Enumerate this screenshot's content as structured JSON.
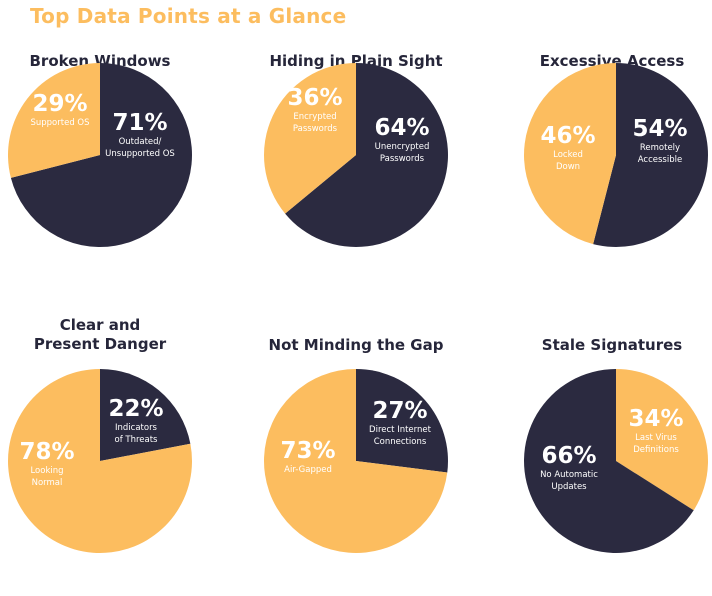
{
  "page": {
    "title": "Top Data Points at a Glance"
  },
  "colors": {
    "navy": "#2b2a40",
    "gold": "#fcbd5f",
    "title": "#26263a"
  },
  "chart_data": [
    {
      "type": "pie",
      "title": "Broken Windows",
      "slices": [
        {
          "value": 71,
          "pct_label": "71%",
          "label_lines": [
            "Outdated/",
            "Unsupported OS"
          ],
          "color": "#2b2a40"
        },
        {
          "value": 29,
          "pct_label": "29%",
          "label_lines": [
            "Supported OS"
          ],
          "color": "#fcbd5f"
        }
      ]
    },
    {
      "type": "pie",
      "title": "Hiding in Plain Sight",
      "slices": [
        {
          "value": 64,
          "pct_label": "64%",
          "label_lines": [
            "Unencrypted",
            "Passwords"
          ],
          "color": "#2b2a40"
        },
        {
          "value": 36,
          "pct_label": "36%",
          "label_lines": [
            "Encrypted",
            "Passwords"
          ],
          "color": "#fcbd5f"
        }
      ]
    },
    {
      "type": "pie",
      "title": "Excessive Access",
      "slices": [
        {
          "value": 54,
          "pct_label": "54%",
          "label_lines": [
            "Remotely",
            "Accessible"
          ],
          "color": "#2b2a40"
        },
        {
          "value": 46,
          "pct_label": "46%",
          "label_lines": [
            "Locked",
            "Down"
          ],
          "color": "#fcbd5f"
        }
      ]
    },
    {
      "type": "pie",
      "title": "Clear and Present Danger",
      "title_lines": [
        "Clear and",
        "Present Danger"
      ],
      "slices": [
        {
          "value": 22,
          "pct_label": "22%",
          "label_lines": [
            "Indicators",
            "of Threats"
          ],
          "color": "#2b2a40"
        },
        {
          "value": 78,
          "pct_label": "78%",
          "label_lines": [
            "Looking",
            "Normal"
          ],
          "color": "#fcbd5f"
        }
      ]
    },
    {
      "type": "pie",
      "title": "Not Minding the Gap",
      "slices": [
        {
          "value": 27,
          "pct_label": "27%",
          "label_lines": [
            "Direct Internet",
            "Connections"
          ],
          "color": "#2b2a40"
        },
        {
          "value": 73,
          "pct_label": "73%",
          "label_lines": [
            "Air-Gapped"
          ],
          "color": "#fcbd5f"
        }
      ]
    },
    {
      "type": "pie",
      "title": "Stale Signatures",
      "slices": [
        {
          "value": 34,
          "pct_label": "34%",
          "label_lines": [
            "Last Virus",
            "Definitions"
          ],
          "color": "#fcbd5f"
        },
        {
          "value": 66,
          "pct_label": "66%",
          "label_lines": [
            "No Automatic",
            "Updates"
          ],
          "color": "#2b2a40"
        }
      ]
    }
  ]
}
